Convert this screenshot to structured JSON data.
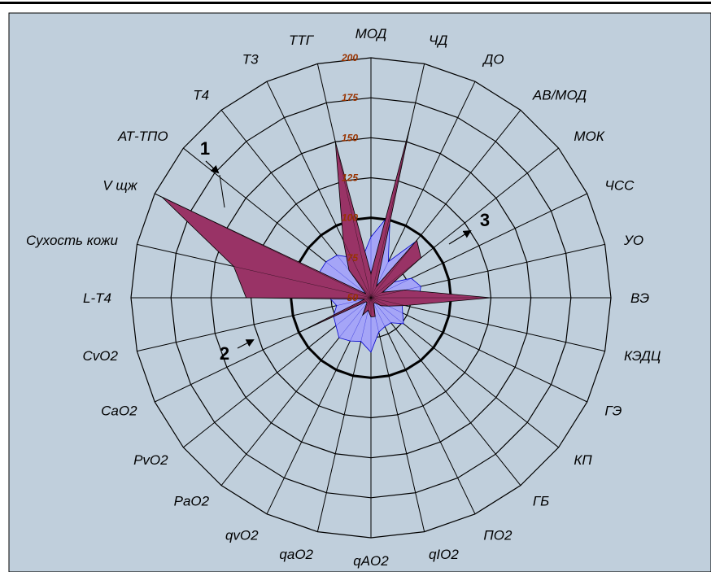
{
  "colors": {
    "background": "#c0cfdc",
    "grid": "#000000",
    "series_norm": "#a5a5f7",
    "series_norm_stroke": "#0000cc",
    "series_patient": "#993366",
    "tick_label": "#993300"
  },
  "chart_data": {
    "type": "radar",
    "title": "",
    "rmin": 50,
    "rmax": 200,
    "ticks": [
      50,
      75,
      100,
      125,
      150,
      175,
      200
    ],
    "tick_labels": [
      "50",
      "75",
      "100",
      "125",
      "150",
      "175",
      "200"
    ],
    "reference_circle": 100,
    "categories": [
      "МОД",
      "ЧД",
      "ДО",
      "АВ/МОД",
      "МОК",
      "ЧСС",
      "УО",
      "ВЭ",
      "КЭДЦ",
      "ГЭ",
      "КП",
      "ГБ",
      "ПО2",
      "qIO2",
      "qAO2",
      "qaO2",
      "qvO2",
      "PaO2",
      "PvO2",
      "CaO2",
      "CvO2",
      "L-T4",
      "Сухость кожи",
      "V щж",
      "АТ-ТПО",
      "Т4",
      "Т3",
      "ТТГ"
    ],
    "series": [
      {
        "values": [
          88,
          104,
          75,
          95,
          65,
          78,
          82,
          80,
          70,
          72,
          76,
          70,
          70,
          72,
          84,
          78,
          80,
          82,
          78,
          76,
          72,
          76,
          86,
          86,
          86,
          84,
          78,
          75
        ]
      },
      {
        "values": [
          65,
          160,
          58,
          96,
          90,
          58,
          72,
          125,
          72,
          62,
          58,
          54,
          54,
          62,
          62,
          58,
          62,
          54,
          54,
          100,
          54,
          128,
          138,
          195,
          54,
          72,
          90,
          150
        ]
      }
    ],
    "annotations": [
      {
        "text": "1"
      },
      {
        "text": "2"
      },
      {
        "text": "3"
      }
    ]
  }
}
